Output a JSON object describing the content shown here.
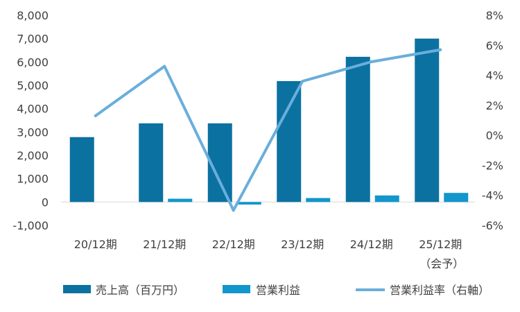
{
  "chart_data": {
    "type": "bar",
    "categories": [
      "20/12期",
      "21/12期",
      "22/12期",
      "23/12期",
      "24/12期",
      "25/12期"
    ],
    "category_sublabels": [
      "",
      "",
      "",
      "",
      "",
      "（会予）"
    ],
    "series": [
      {
        "name": "売上高（百万円）",
        "type": "bar",
        "axis": "left",
        "color": "#0b71a0",
        "values": [
          2780,
          3370,
          3370,
          5180,
          6220,
          7000
        ]
      },
      {
        "name": "営業利益",
        "type": "bar",
        "axis": "left",
        "color": "#1296cb",
        "values": [
          0,
          140,
          -110,
          170,
          280,
          390
        ]
      },
      {
        "name": "営業利益率（右軸）",
        "type": "line",
        "axis": "right",
        "color": "#6aaedc",
        "values": [
          1.3,
          4.6,
          -5.0,
          3.6,
          4.9,
          5.7
        ]
      }
    ],
    "y_left": {
      "ylim": [
        -1000,
        8000
      ],
      "ticks": [
        8000,
        7000,
        6000,
        5000,
        4000,
        3000,
        2000,
        1000,
        0,
        -1000
      ],
      "tick_labels": [
        "8,000",
        "7,000",
        "6,000",
        "5,000",
        "4,000",
        "3,000",
        "2,000",
        "1,000",
        "0",
        "-1,000"
      ]
    },
    "y_right": {
      "ylim": [
        -6,
        8
      ],
      "ticks": [
        8,
        6,
        4,
        2,
        0,
        -2,
        -4,
        -6
      ],
      "tick_labels": [
        "8%",
        "6%",
        "4%",
        "2%",
        "0%",
        "-2%",
        "-4%",
        "-6%"
      ]
    },
    "grid": false,
    "legend_position": "bottom"
  }
}
